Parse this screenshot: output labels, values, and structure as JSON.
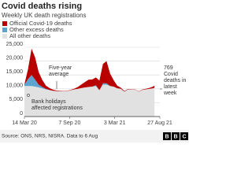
{
  "chart_data": {
    "type": "area",
    "stacked": true,
    "title": "Covid deaths rising",
    "subtitle": "Weekly UK death registrations",
    "x": [
      "2020-03-14",
      "2020-03-28",
      "2020-04-11",
      "2020-04-25",
      "2020-05-09",
      "2020-05-23",
      "2020-06-06",
      "2020-06-20",
      "2020-07-04",
      "2020-07-18",
      "2020-08-01",
      "2020-08-15",
      "2020-08-29",
      "2020-09-12",
      "2020-09-26",
      "2020-10-10",
      "2020-10-24",
      "2020-11-07",
      "2020-11-21",
      "2020-12-05",
      "2020-12-19",
      "2021-01-02",
      "2021-01-16",
      "2021-01-30",
      "2021-02-13",
      "2021-02-27",
      "2021-03-13",
      "2021-03-27",
      "2021-04-10",
      "2021-04-24",
      "2021-05-08",
      "2021-05-22",
      "2021-06-05",
      "2021-06-19",
      "2021-07-03",
      "2021-07-17",
      "2021-07-31",
      "2021-08-06"
    ],
    "series": [
      {
        "name": "Official Covid-19 deaths",
        "color": "#b80000",
        "values": [
          100,
          3500,
          9500,
          8000,
          4500,
          2500,
          1200,
          700,
          400,
          200,
          150,
          100,
          100,
          150,
          300,
          700,
          1300,
          2000,
          2600,
          2600,
          2800,
          3500,
          7000,
          8000,
          4500,
          2300,
          900,
          400,
          200,
          150,
          100,
          80,
          90,
          120,
          200,
          350,
          600,
          769
        ]
      },
      {
        "name": "Other excess deaths",
        "color": "#5ba4cf",
        "values": [
          500,
          2500,
          4000,
          2500,
          1000,
          500,
          200,
          0,
          0,
          0,
          0,
          0,
          0,
          0,
          0,
          0,
          0,
          0,
          0,
          0,
          300,
          0,
          500,
          500,
          0,
          0,
          0,
          0,
          0,
          0,
          0,
          0,
          0,
          0,
          0,
          0,
          0,
          100
        ]
      },
      {
        "name": "All other deaths",
        "color": "#e1e1e1",
        "values": [
          11000,
          11000,
          11000,
          10800,
          10500,
          10200,
          9800,
          9600,
          9300,
          9200,
          9200,
          9100,
          9200,
          9500,
          9800,
          10000,
          10300,
          10500,
          10700,
          10800,
          11000,
          9500,
          11500,
          11500,
          11000,
          10800,
          10200,
          10000,
          9000,
          9800,
          9700,
          9800,
          9000,
          9600,
          9800,
          10000,
          10200,
          10300
        ]
      }
    ],
    "xlim": [
      "2020-03-14",
      "2021-08-27"
    ],
    "xticks": [
      {
        "value": "2020-03-14",
        "label": "14 Mar 20"
      },
      {
        "value": "2020-09-07",
        "label": "7 Sep 20"
      },
      {
        "value": "2021-03-03",
        "label": "3 Mar 21"
      },
      {
        "value": "2021-08-27",
        "label": "27 Aug 21"
      }
    ],
    "ylim": [
      0,
      25000
    ],
    "yticks": [
      0,
      {
        "value": 5000,
        "label": "5,000"
      },
      {
        "value": 10000,
        "label": "10,000"
      },
      {
        "value": 15000,
        "label": "15,000"
      },
      {
        "value": 20000,
        "label": "20,000"
      },
      {
        "value": 25000,
        "label": "25,000"
      }
    ],
    "grid": true,
    "annotations": [
      [
        "Five-year",
        "average"
      ],
      [
        "Bank holidays",
        "affected registrations"
      ],
      [
        "769",
        "Covid",
        "deaths in",
        "latest",
        "week"
      ]
    ],
    "source": "Source: ONS, NRS, NISRA. Data to 6 Aug",
    "logo": [
      "B",
      "B",
      "C"
    ]
  }
}
